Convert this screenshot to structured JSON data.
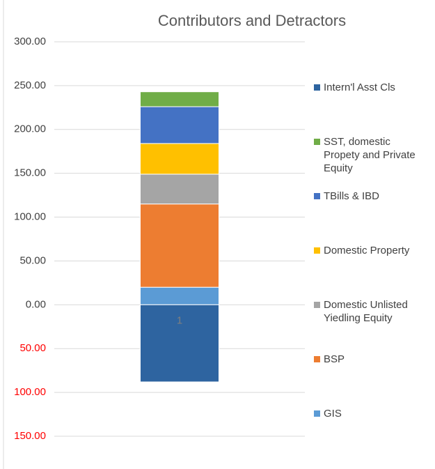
{
  "chart_data": {
    "type": "stacked_bar",
    "title": "Contributors and Detractors",
    "categories": [
      "1"
    ],
    "series": [
      {
        "name": "GIS",
        "color": "#5b9bd5",
        "values": [
          20
        ]
      },
      {
        "name": "BSP",
        "color": "#ed7d31",
        "values": [
          95
        ]
      },
      {
        "name": "Domestic Unlisted Yiedling Equity",
        "color": "#a5a5a5",
        "values": [
          34
        ]
      },
      {
        "name": "Domestic Property",
        "color": "#ffc000",
        "values": [
          35
        ]
      },
      {
        "name": "TBills & IBD",
        "color": "#4472c4",
        "values": [
          42
        ]
      },
      {
        "name": "SST, domestic Propety and Private Equity",
        "color": "#70ad47",
        "values": [
          17
        ]
      },
      {
        "name": "Intern'l Asst Cls",
        "color": "#2e64a0",
        "values": [
          -88
        ]
      }
    ],
    "ylim": [
      -150,
      300
    ],
    "yticks": [
      {
        "value": 300,
        "label": "300.00"
      },
      {
        "value": 250,
        "label": "250.00"
      },
      {
        "value": 200,
        "label": "200.00"
      },
      {
        "value": 150,
        "label": "150.00"
      },
      {
        "value": 100,
        "label": "100.00"
      },
      {
        "value": 50,
        "label": "50.00"
      },
      {
        "value": 0,
        "label": "0.00"
      },
      {
        "value": -50,
        "label": "50.00"
      },
      {
        "value": -100,
        "label": "100.00"
      },
      {
        "value": -150,
        "label": "150.00"
      }
    ],
    "negative_tick_color": "#ff0000",
    "grid": true,
    "legend": "right"
  }
}
